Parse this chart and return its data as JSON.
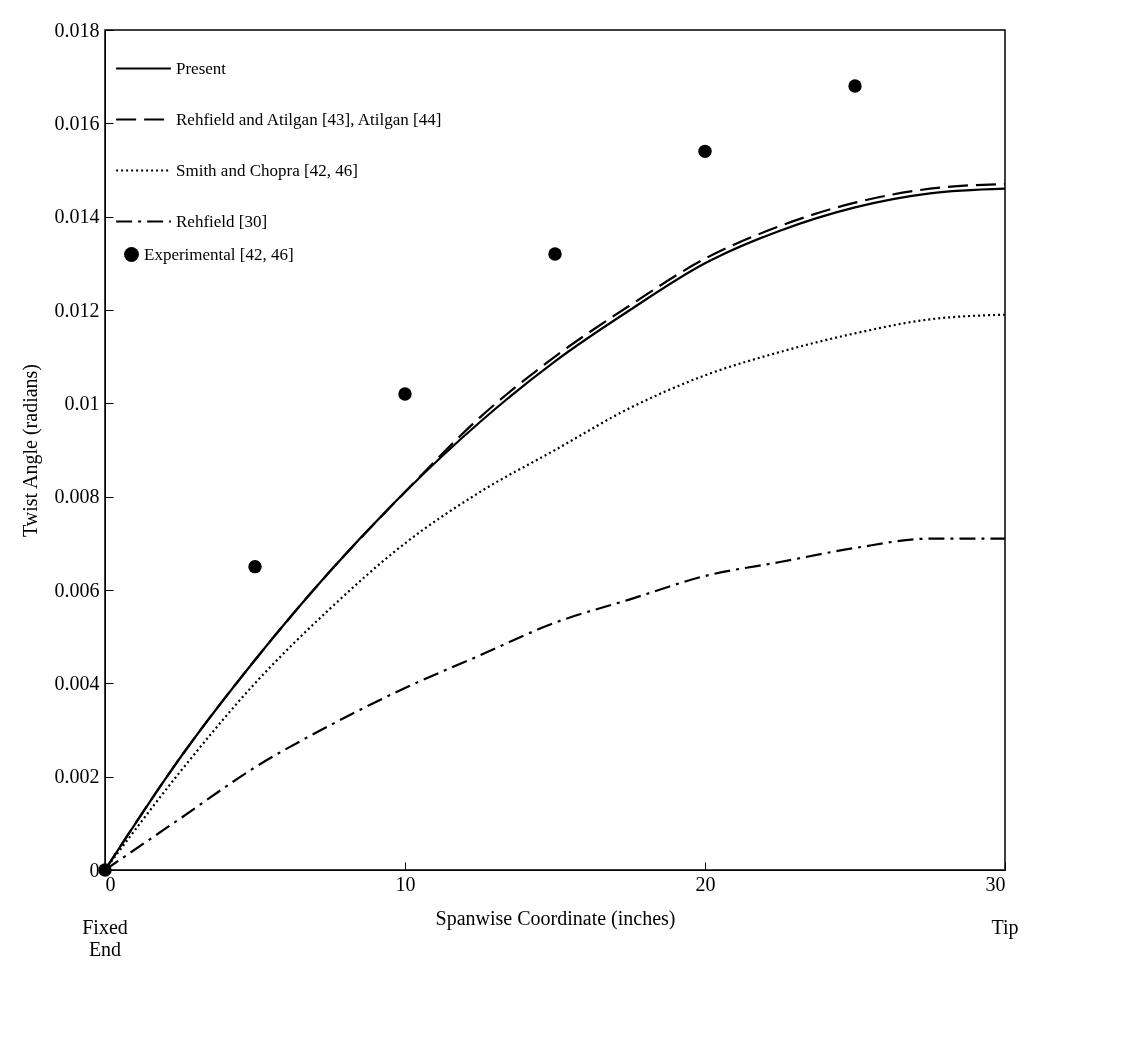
{
  "chart_data": {
    "type": "line",
    "xlabel": "Spanwise Coordinate (inches)",
    "ylabel": "Twist Angle (radians)",
    "xlim": [
      0,
      30
    ],
    "xticks": [
      0,
      10,
      20,
      30
    ],
    "ylim": [
      0,
      0.018
    ],
    "yticks": [
      0,
      0.002,
      0.004,
      0.006,
      0.008,
      {
        "value": 0.01,
        "label": "0.01"
      },
      0.012,
      0.014,
      0.016,
      0.018
    ],
    "grid": false,
    "legend": "top left",
    "series": [
      {
        "name": "Present",
        "color": "#000000",
        "line_style": "solid",
        "x": [
          0,
          2.5,
          5,
          7.5,
          10,
          12.5,
          15,
          17.5,
          20,
          22.5,
          25,
          27.5,
          30
        ],
        "values": [
          0,
          0.0024,
          0.0045,
          0.0064,
          0.0081,
          0.0096,
          0.0109,
          0.012,
          0.013,
          0.0137,
          0.0142,
          0.0145,
          0.0146
        ]
      },
      {
        "name": "Rehfield and Atilgan [43], Atilgan [44]",
        "color": "#000000",
        "line_style": "dashed",
        "x": [
          0,
          2.5,
          5,
          7.5,
          10,
          12.5,
          15,
          17.5,
          20,
          22.5,
          25,
          27.5,
          30
        ],
        "values": [
          0,
          0.0024,
          0.0045,
          0.0064,
          0.0081,
          0.0097,
          0.011,
          0.0121,
          0.0131,
          0.0138,
          0.0143,
          0.0146,
          0.0147
        ]
      },
      {
        "name": "Smith and Chopra [42, 46]",
        "color": "#000000",
        "line_style": "dotted",
        "x": [
          0,
          2.5,
          5,
          7.5,
          10,
          12.5,
          15,
          17.5,
          20,
          22.5,
          25,
          27.5,
          30
        ],
        "values": [
          0,
          0.0021,
          0.004,
          0.0056,
          0.007,
          0.0081,
          0.009,
          0.0099,
          0.0106,
          0.0111,
          0.0115,
          0.0118,
          0.0119
        ]
      },
      {
        "name": "Rehfield [30]",
        "color": "#000000",
        "line_style": "dashdot",
        "x": [
          0,
          2.5,
          5,
          7.5,
          10,
          12.5,
          15,
          17.5,
          20,
          22.5,
          25,
          27.5,
          30
        ],
        "values": [
          0,
          0.0011,
          0.0022,
          0.0031,
          0.0039,
          0.0046,
          0.0053,
          0.0058,
          0.0063,
          0.0066,
          0.0069,
          0.0071,
          0.0071
        ]
      },
      {
        "name": "Experimental [42, 46]",
        "type": "scatter",
        "marker": "circle",
        "color": "#000000",
        "x": [
          0,
          5,
          10,
          15,
          20,
          25
        ],
        "values": [
          0,
          0.0065,
          0.0102,
          0.0132,
          0.0154,
          0.0168
        ]
      }
    ],
    "annotations": [
      "Fixed End",
      "Tip"
    ]
  }
}
